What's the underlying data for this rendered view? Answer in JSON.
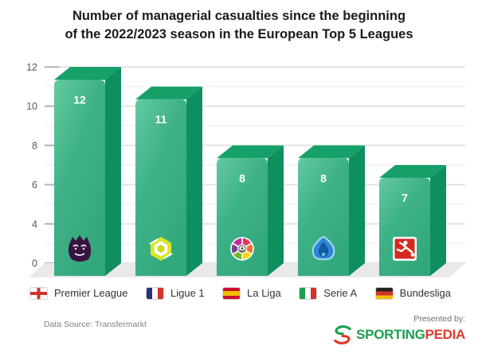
{
  "title": {
    "line1": "Number of managerial casualties since the beginning",
    "line2": "of the 2022/2023 season in the European Top 5 Leagues"
  },
  "chart_data": {
    "type": "bar",
    "title": "Number of managerial casualties since the beginning of the 2022/2023 season in the European Top 5 Leagues",
    "categories": [
      "Premier League",
      "Ligue 1",
      "La Liga",
      "Serie A",
      "Bundesliga"
    ],
    "values": [
      12,
      11,
      8,
      8,
      7
    ],
    "bar_value_labels": [
      "12",
      "11",
      "8",
      "8",
      "7"
    ],
    "bar_icons": [
      "premier-league-logo",
      "ligue1-logo",
      "laliga-logo",
      "seriea-logo",
      "bundesliga-logo"
    ],
    "xlabel": "",
    "ylabel": "",
    "y_axis_tick_labels": [
      "12",
      "10",
      "8",
      "6",
      "4",
      "0"
    ],
    "ylim": [
      0,
      12
    ],
    "grid": true,
    "legend_position": "bottom",
    "colors": {
      "bar_front": "#3eb287",
      "bar_front_light": "#63c9a0",
      "bar_front_dark": "#31a87b",
      "bar_top": "#16a06a",
      "bar_side": "#0f8f5f",
      "value_label": "#ffffff",
      "gridline_major": "#e4e4e4",
      "gridline_minor": "#f2f2f2",
      "axis_tick": "#b5b5b5",
      "floor": "#e9e9e9",
      "tick_label": "#5a5a5a"
    }
  },
  "legend": {
    "items": [
      {
        "label": "Premier League",
        "flag": "england"
      },
      {
        "label": "Ligue 1",
        "flag": "france"
      },
      {
        "label": "La Liga",
        "flag": "spain"
      },
      {
        "label": "Serie A",
        "flag": "italy"
      },
      {
        "label": "Bundesliga",
        "flag": "germany"
      }
    ]
  },
  "footer": {
    "source": "Data Source: Transfermarkt",
    "presented_by": "Presented by:",
    "brand": {
      "name_part1": "SPORTING",
      "name_part2": "PEDIA",
      "color_part1": "#1d9e50",
      "color_part2": "#e2382c"
    }
  }
}
